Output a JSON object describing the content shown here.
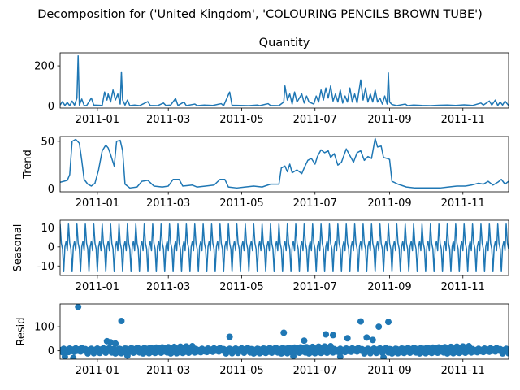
{
  "chart_data": {
    "type": "decomposition",
    "suptitle": "Decomposition for ('United Kingdom', 'COLOURING PENCILS BROWN TUBE')",
    "x_domain": [
      "2010-12-01",
      "2011-12-09"
    ],
    "x_ticks": [
      "2011-01",
      "2011-03",
      "2011-05",
      "2011-07",
      "2011-09",
      "2011-11"
    ],
    "line_color": "#1f77b4",
    "panels": [
      {
        "id": "quantity",
        "title": "Quantity",
        "ylabel": "",
        "kind": "line",
        "ylim": [
          -10,
          265
        ],
        "yticks": [
          0,
          200
        ],
        "series": [
          [
            "2010-12-01",
            5
          ],
          [
            "2010-12-03",
            22
          ],
          [
            "2010-12-05",
            3
          ],
          [
            "2010-12-07",
            18
          ],
          [
            "2010-12-09",
            2
          ],
          [
            "2010-12-11",
            25
          ],
          [
            "2010-12-13",
            4
          ],
          [
            "2010-12-15",
            40
          ],
          [
            "2010-12-16",
            250
          ],
          [
            "2010-12-17",
            5
          ],
          [
            "2010-12-19",
            35
          ],
          [
            "2010-12-21",
            3
          ],
          [
            "2010-12-23",
            2
          ],
          [
            "2010-12-27",
            40
          ],
          [
            "2010-12-29",
            5
          ],
          [
            "2011-01-05",
            3
          ],
          [
            "2011-01-07",
            70
          ],
          [
            "2011-01-09",
            30
          ],
          [
            "2011-01-10",
            60
          ],
          [
            "2011-01-12",
            20
          ],
          [
            "2011-01-14",
            80
          ],
          [
            "2011-01-16",
            30
          ],
          [
            "2011-01-18",
            60
          ],
          [
            "2011-01-20",
            10
          ],
          [
            "2011-01-21",
            170
          ],
          [
            "2011-01-22",
            30
          ],
          [
            "2011-01-24",
            5
          ],
          [
            "2011-01-26",
            30
          ],
          [
            "2011-01-28",
            2
          ],
          [
            "2011-02-01",
            5
          ],
          [
            "2011-02-05",
            2
          ],
          [
            "2011-02-12",
            22
          ],
          [
            "2011-02-14",
            3
          ],
          [
            "2011-02-20",
            2
          ],
          [
            "2011-02-25",
            15
          ],
          [
            "2011-02-27",
            3
          ],
          [
            "2011-03-03",
            5
          ],
          [
            "2011-03-07",
            38
          ],
          [
            "2011-03-09",
            3
          ],
          [
            "2011-03-14",
            20
          ],
          [
            "2011-03-16",
            2
          ],
          [
            "2011-03-23",
            10
          ],
          [
            "2011-03-25",
            2
          ],
          [
            "2011-03-31",
            5
          ],
          [
            "2011-04-07",
            3
          ],
          [
            "2011-04-14",
            12
          ],
          [
            "2011-04-16",
            2
          ],
          [
            "2011-04-21",
            70
          ],
          [
            "2011-04-23",
            4
          ],
          [
            "2011-04-30",
            3
          ],
          [
            "2011-05-07",
            2
          ],
          [
            "2011-05-14",
            5
          ],
          [
            "2011-05-16",
            2
          ],
          [
            "2011-05-23",
            12
          ],
          [
            "2011-05-25",
            3
          ],
          [
            "2011-06-01",
            2
          ],
          [
            "2011-06-05",
            20
          ],
          [
            "2011-06-06",
            100
          ],
          [
            "2011-06-08",
            30
          ],
          [
            "2011-06-10",
            60
          ],
          [
            "2011-06-12",
            10
          ],
          [
            "2011-06-14",
            70
          ],
          [
            "2011-06-16",
            20
          ],
          [
            "2011-06-18",
            40
          ],
          [
            "2011-06-20",
            60
          ],
          [
            "2011-06-22",
            15
          ],
          [
            "2011-06-24",
            50
          ],
          [
            "2011-06-26",
            20
          ],
          [
            "2011-06-30",
            10
          ],
          [
            "2011-07-02",
            50
          ],
          [
            "2011-07-04",
            20
          ],
          [
            "2011-07-06",
            80
          ],
          [
            "2011-07-08",
            30
          ],
          [
            "2011-07-10",
            90
          ],
          [
            "2011-07-12",
            40
          ],
          [
            "2011-07-14",
            100
          ],
          [
            "2011-07-16",
            25
          ],
          [
            "2011-07-18",
            60
          ],
          [
            "2011-07-20",
            20
          ],
          [
            "2011-07-22",
            80
          ],
          [
            "2011-07-24",
            15
          ],
          [
            "2011-07-26",
            50
          ],
          [
            "2011-07-28",
            20
          ],
          [
            "2011-07-30",
            90
          ],
          [
            "2011-08-01",
            20
          ],
          [
            "2011-08-03",
            60
          ],
          [
            "2011-08-05",
            15
          ],
          [
            "2011-08-08",
            130
          ],
          [
            "2011-08-10",
            30
          ],
          [
            "2011-08-12",
            90
          ],
          [
            "2011-08-14",
            20
          ],
          [
            "2011-08-16",
            60
          ],
          [
            "2011-08-18",
            20
          ],
          [
            "2011-08-20",
            80
          ],
          [
            "2011-08-22",
            20
          ],
          [
            "2011-08-24",
            40
          ],
          [
            "2011-08-26",
            10
          ],
          [
            "2011-08-28",
            50
          ],
          [
            "2011-08-30",
            10
          ],
          [
            "2011-08-31",
            165
          ],
          [
            "2011-09-01",
            20
          ],
          [
            "2011-09-03",
            8
          ],
          [
            "2011-09-07",
            2
          ],
          [
            "2011-09-14",
            10
          ],
          [
            "2011-09-16",
            2
          ],
          [
            "2011-09-21",
            5
          ],
          [
            "2011-09-28",
            3
          ],
          [
            "2011-10-05",
            2
          ],
          [
            "2011-10-12",
            4
          ],
          [
            "2011-10-19",
            5
          ],
          [
            "2011-10-26",
            3
          ],
          [
            "2011-11-02",
            6
          ],
          [
            "2011-11-09",
            3
          ],
          [
            "2011-11-16",
            15
          ],
          [
            "2011-11-18",
            5
          ],
          [
            "2011-11-23",
            25
          ],
          [
            "2011-11-25",
            5
          ],
          [
            "2011-11-28",
            30
          ],
          [
            "2011-11-30",
            3
          ],
          [
            "2011-12-02",
            20
          ],
          [
            "2011-12-04",
            5
          ],
          [
            "2011-12-06",
            25
          ],
          [
            "2011-12-08",
            10
          ],
          [
            "2011-12-09",
            3
          ]
        ]
      },
      {
        "id": "trend",
        "title": "",
        "ylabel": "Trend",
        "kind": "line",
        "ylim": [
          -3,
          55
        ],
        "yticks": [
          0,
          50
        ],
        "series": [
          [
            "2010-12-01",
            7
          ],
          [
            "2010-12-04",
            8
          ],
          [
            "2010-12-07",
            9
          ],
          [
            "2010-12-09",
            15
          ],
          [
            "2010-12-11",
            50
          ],
          [
            "2010-12-14",
            52
          ],
          [
            "2010-12-17",
            48
          ],
          [
            "2010-12-19",
            30
          ],
          [
            "2010-12-21",
            10
          ],
          [
            "2010-12-24",
            5
          ],
          [
            "2010-12-27",
            3
          ],
          [
            "2010-12-30",
            6
          ],
          [
            "2011-01-02",
            20
          ],
          [
            "2011-01-05",
            40
          ],
          [
            "2011-01-08",
            46
          ],
          [
            "2011-01-10",
            43
          ],
          [
            "2011-01-12",
            36
          ],
          [
            "2011-01-15",
            24
          ],
          [
            "2011-01-17",
            50
          ],
          [
            "2011-01-20",
            51
          ],
          [
            "2011-01-22",
            40
          ],
          [
            "2011-01-24",
            5
          ],
          [
            "2011-01-28",
            1
          ],
          [
            "2011-02-03",
            2
          ],
          [
            "2011-02-07",
            8
          ],
          [
            "2011-02-12",
            9
          ],
          [
            "2011-02-17",
            3
          ],
          [
            "2011-02-24",
            2
          ],
          [
            "2011-03-01",
            3
          ],
          [
            "2011-03-05",
            10
          ],
          [
            "2011-03-10",
            10
          ],
          [
            "2011-03-13",
            3
          ],
          [
            "2011-03-21",
            4
          ],
          [
            "2011-03-25",
            2
          ],
          [
            "2011-04-01",
            3
          ],
          [
            "2011-04-08",
            4
          ],
          [
            "2011-04-13",
            10
          ],
          [
            "2011-04-17",
            10
          ],
          [
            "2011-04-20",
            2
          ],
          [
            "2011-04-27",
            1
          ],
          [
            "2011-05-04",
            2
          ],
          [
            "2011-05-11",
            3
          ],
          [
            "2011-05-18",
            2
          ],
          [
            "2011-05-25",
            5
          ],
          [
            "2011-06-01",
            5
          ],
          [
            "2011-06-03",
            22
          ],
          [
            "2011-06-06",
            24
          ],
          [
            "2011-06-08",
            18
          ],
          [
            "2011-06-10",
            26
          ],
          [
            "2011-06-12",
            17
          ],
          [
            "2011-06-16",
            20
          ],
          [
            "2011-06-20",
            16
          ],
          [
            "2011-06-22",
            22
          ],
          [
            "2011-06-25",
            30
          ],
          [
            "2011-06-28",
            32
          ],
          [
            "2011-07-01",
            26
          ],
          [
            "2011-07-03",
            34
          ],
          [
            "2011-07-06",
            41
          ],
          [
            "2011-07-09",
            38
          ],
          [
            "2011-07-12",
            40
          ],
          [
            "2011-07-14",
            33
          ],
          [
            "2011-07-17",
            37
          ],
          [
            "2011-07-20",
            25
          ],
          [
            "2011-07-23",
            28
          ],
          [
            "2011-07-27",
            42
          ],
          [
            "2011-07-30",
            35
          ],
          [
            "2011-08-02",
            28
          ],
          [
            "2011-08-05",
            38
          ],
          [
            "2011-08-08",
            40
          ],
          [
            "2011-08-11",
            30
          ],
          [
            "2011-08-14",
            34
          ],
          [
            "2011-08-17",
            32
          ],
          [
            "2011-08-20",
            53
          ],
          [
            "2011-08-22",
            44
          ],
          [
            "2011-08-25",
            45
          ],
          [
            "2011-08-27",
            33
          ],
          [
            "2011-08-30",
            32
          ],
          [
            "2011-09-01",
            31
          ],
          [
            "2011-09-03",
            8
          ],
          [
            "2011-09-08",
            5
          ],
          [
            "2011-09-15",
            2
          ],
          [
            "2011-09-22",
            1
          ],
          [
            "2011-09-29",
            1
          ],
          [
            "2011-10-06",
            1
          ],
          [
            "2011-10-13",
            1
          ],
          [
            "2011-10-20",
            2
          ],
          [
            "2011-10-27",
            3
          ],
          [
            "2011-11-03",
            3
          ],
          [
            "2011-11-08",
            4
          ],
          [
            "2011-11-14",
            6
          ],
          [
            "2011-11-18",
            5
          ],
          [
            "2011-11-22",
            8
          ],
          [
            "2011-11-26",
            4
          ],
          [
            "2011-11-30",
            7
          ],
          [
            "2011-12-03",
            10
          ],
          [
            "2011-12-06",
            5
          ],
          [
            "2011-12-09",
            8
          ]
        ]
      },
      {
        "id": "seasonal",
        "title": "",
        "ylabel": "Seasonal",
        "kind": "seasonal",
        "ylim": [
          -15,
          14
        ],
        "yticks": [
          -10,
          0,
          10
        ],
        "period_days": 7,
        "cycle": [
          12,
          2,
          -1,
          -13,
          0,
          3,
          -2
        ]
      },
      {
        "id": "resid",
        "title": "",
        "ylabel": "Resid",
        "kind": "scatter",
        "ylim": [
          -35,
          195
        ],
        "yticks": [
          0,
          100
        ],
        "points": [
          [
            "2010-12-16",
            183
          ],
          [
            "2011-01-21",
            124
          ],
          [
            "2011-04-21",
            58
          ],
          [
            "2011-06-05",
            75
          ],
          [
            "2011-06-22",
            42
          ],
          [
            "2011-07-10",
            68
          ],
          [
            "2011-07-16",
            65
          ],
          [
            "2011-07-28",
            52
          ],
          [
            "2011-08-08",
            122
          ],
          [
            "2011-08-13",
            55
          ],
          [
            "2011-08-18",
            45
          ],
          [
            "2011-08-23",
            100
          ],
          [
            "2011-08-31",
            120
          ],
          [
            "2011-01-09",
            40
          ],
          [
            "2011-01-12",
            35
          ],
          [
            "2011-01-16",
            30
          ],
          [
            "2010-12-05",
            -25
          ],
          [
            "2010-12-12",
            -30
          ],
          [
            "2011-01-26",
            -20
          ],
          [
            "2011-06-13",
            -22
          ],
          [
            "2011-07-22",
            -25
          ],
          [
            "2011-08-27",
            -28
          ]
        ]
      }
    ]
  }
}
